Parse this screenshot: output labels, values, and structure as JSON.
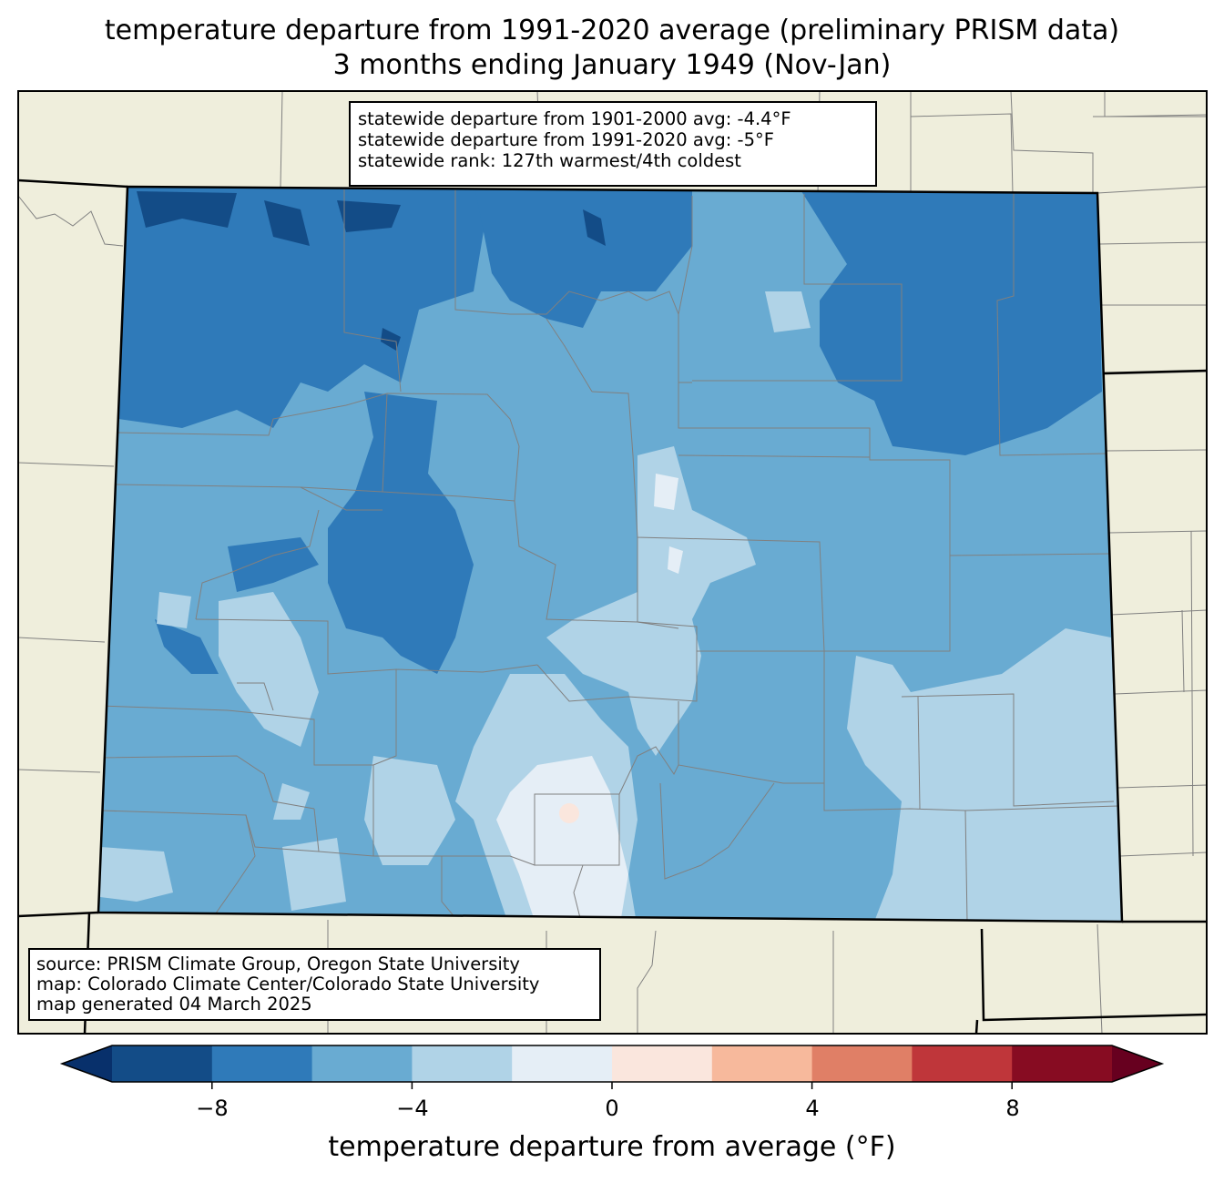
{
  "title": {
    "line1": "temperature departure from 1991-2020 average (preliminary PRISM data)",
    "line2": "3 months ending January 1949 (Nov-Jan)"
  },
  "stats": {
    "line1": "statewide departure from 1901-2000 avg: -4.4°F",
    "line2": "statewide departure from 1991-2020 avg: -5°F",
    "line3": "statewide rank: 127th warmest/4th coldest"
  },
  "source": {
    "line1": "source: PRISM Climate Group, Oregon State University",
    "line2": "map: Colorado Climate Center/Colorado State University",
    "line3": "map generated 04 March 2025"
  },
  "colorbar": {
    "label": "temperature departure from average (°F)",
    "ticks": [
      "−8",
      "−4",
      "0",
      "4",
      "8"
    ],
    "bins": [
      {
        "range": "< -10",
        "color": "#08306b"
      },
      {
        "range": "-10 to -8",
        "color": "#134c87"
      },
      {
        "range": "-8 to -6",
        "color": "#2f7ab9"
      },
      {
        "range": "-6 to -4",
        "color": "#69abd2"
      },
      {
        "range": "-4 to -2",
        "color": "#b0d3e7"
      },
      {
        "range": "-2 to 0",
        "color": "#e5eef6"
      },
      {
        "range": "0 to 2",
        "color": "#fae6dd"
      },
      {
        "range": "2 to 4",
        "color": "#f7b99c"
      },
      {
        "range": "4 to 6",
        "color": "#e07f66"
      },
      {
        "range": "6 to 8",
        "color": "#bf363a"
      },
      {
        "range": "8 to 10",
        "color": "#870c22"
      },
      {
        "range": "> 10",
        "color": "#67001f"
      }
    ]
  },
  "colors": {
    "land": "#efeedc",
    "county_line": "#808080",
    "state_line": "#000000"
  }
}
